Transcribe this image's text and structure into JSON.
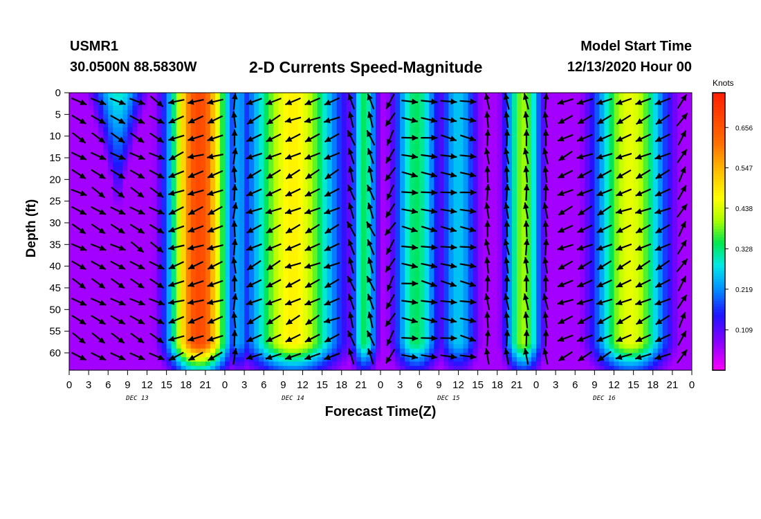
{
  "header": {
    "station": "USMR1",
    "coords": "30.0500N 88.5830W",
    "title": "2-D Currents Speed-Magnitude",
    "model_start_label": "Model Start Time",
    "model_start_time": "12/13/2020 Hour 00"
  },
  "colorbar": {
    "units": "Knots",
    "ticks": [
      "0.109",
      "0.219",
      "0.328",
      "0.438",
      "0.547",
      "0.656"
    ],
    "tick_values": [
      0.109,
      0.219,
      0.328,
      0.438,
      0.547,
      0.656
    ],
    "range": [
      0.0,
      0.75
    ]
  },
  "chart_data": {
    "type": "heatmap",
    "title": "2-D Currents Speed-Magnitude",
    "xlabel": "Forecast Time(Z)",
    "ylabel": "Depth (ft)",
    "x_range_hours": [
      0,
      96
    ],
    "y_range_ft": [
      0,
      64
    ],
    "x_ticks": [
      "0",
      "3",
      "6",
      "9",
      "12",
      "15",
      "18",
      "21",
      "0",
      "3",
      "6",
      "9",
      "12",
      "15",
      "18",
      "21",
      "0",
      "3",
      "6",
      "9",
      "12",
      "15",
      "18",
      "21",
      "0",
      "3",
      "6",
      "9",
      "12",
      "15",
      "18",
      "21",
      "0"
    ],
    "x_tick_hours": [
      0,
      3,
      6,
      9,
      12,
      15,
      18,
      21,
      24,
      27,
      30,
      33,
      36,
      39,
      42,
      45,
      48,
      51,
      54,
      57,
      60,
      63,
      66,
      69,
      72,
      75,
      78,
      81,
      84,
      87,
      90,
      93,
      96
    ],
    "y_ticks": [
      "0",
      "5",
      "10",
      "15",
      "20",
      "25",
      "30",
      "35",
      "40",
      "45",
      "50",
      "55",
      "60"
    ],
    "y_tick_values": [
      0,
      5,
      10,
      15,
      20,
      25,
      30,
      35,
      40,
      45,
      50,
      55,
      60
    ],
    "day_labels": [
      "DEC 13",
      "DEC 14",
      "DEC 15",
      "DEC 16"
    ],
    "day_label_hours": [
      10.5,
      34.5,
      58.5,
      82.5
    ],
    "colorscale_knots": [
      0.0,
      0.75
    ],
    "speed_bands": [
      {
        "center_hour": 7.5,
        "peak_knots": 0.3,
        "width_hours": 4.0,
        "near_surface": true
      },
      {
        "center_hour": 20.0,
        "peak_knots": 0.68,
        "width_hours": 4.5
      },
      {
        "center_hour": 26.2,
        "peak_knots": 0.25,
        "width_hours": 1.2
      },
      {
        "center_hour": 34.5,
        "peak_knots": 0.48,
        "width_hours": 7.0
      },
      {
        "center_hour": 45.5,
        "peak_knots": 0.34,
        "width_hours": 2.0
      },
      {
        "center_hour": 53.5,
        "peak_knots": 0.34,
        "width_hours": 3.5
      },
      {
        "center_hour": 60.0,
        "peak_knots": 0.26,
        "width_hours": 3.0
      },
      {
        "center_hour": 70.0,
        "peak_knots": 0.4,
        "width_hours": 2.8
      },
      {
        "center_hour": 86.5,
        "peak_knots": 0.45,
        "width_hours": 5.5
      }
    ],
    "vector_direction_phases": [
      {
        "start_hour": 0,
        "end_hour": 16,
        "angle_deg": -30
      },
      {
        "start_hour": 16,
        "end_hour": 24,
        "angle_deg": -160
      },
      {
        "start_hour": 24,
        "end_hour": 28,
        "angle_deg": 90
      },
      {
        "start_hour": 28,
        "end_hour": 42,
        "angle_deg": -155
      },
      {
        "start_hour": 42,
        "end_hour": 47,
        "angle_deg": 110
      },
      {
        "start_hour": 47,
        "end_hour": 52,
        "angle_deg": -120
      },
      {
        "start_hour": 52,
        "end_hour": 64,
        "angle_deg": -10
      },
      {
        "start_hour": 64,
        "end_hour": 74,
        "angle_deg": 95
      },
      {
        "start_hour": 74,
        "end_hour": 92,
        "angle_deg": -155
      },
      {
        "start_hour": 92,
        "end_hour": 96,
        "angle_deg": 60
      }
    ]
  }
}
